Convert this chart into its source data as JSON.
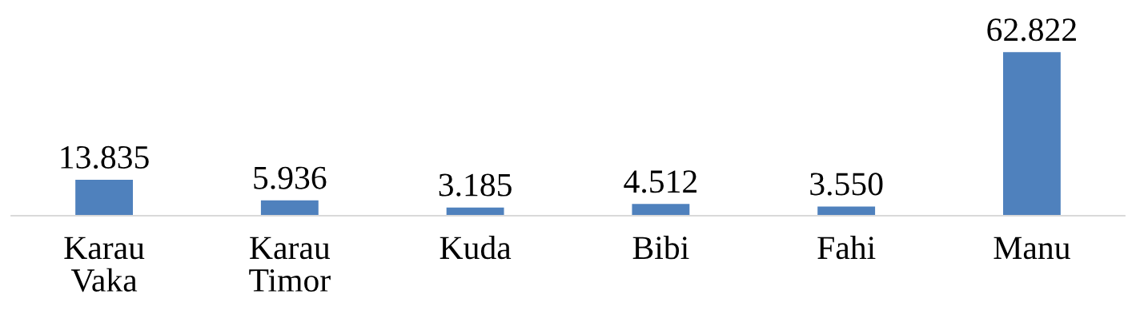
{
  "chart_data": {
    "type": "bar",
    "categories": [
      "Karau Vaka",
      "Karau Timor",
      "Kuda",
      "Bibi",
      "Fahi",
      "Manu"
    ],
    "values": [
      13.835,
      5.936,
      3.185,
      4.512,
      3.55,
      62.822
    ],
    "value_labels": [
      "13.835",
      "5.936",
      "3.185",
      "4.512",
      "3.550",
      "62.822"
    ],
    "color": "#4f81bd",
    "grid": false,
    "legend": false
  }
}
